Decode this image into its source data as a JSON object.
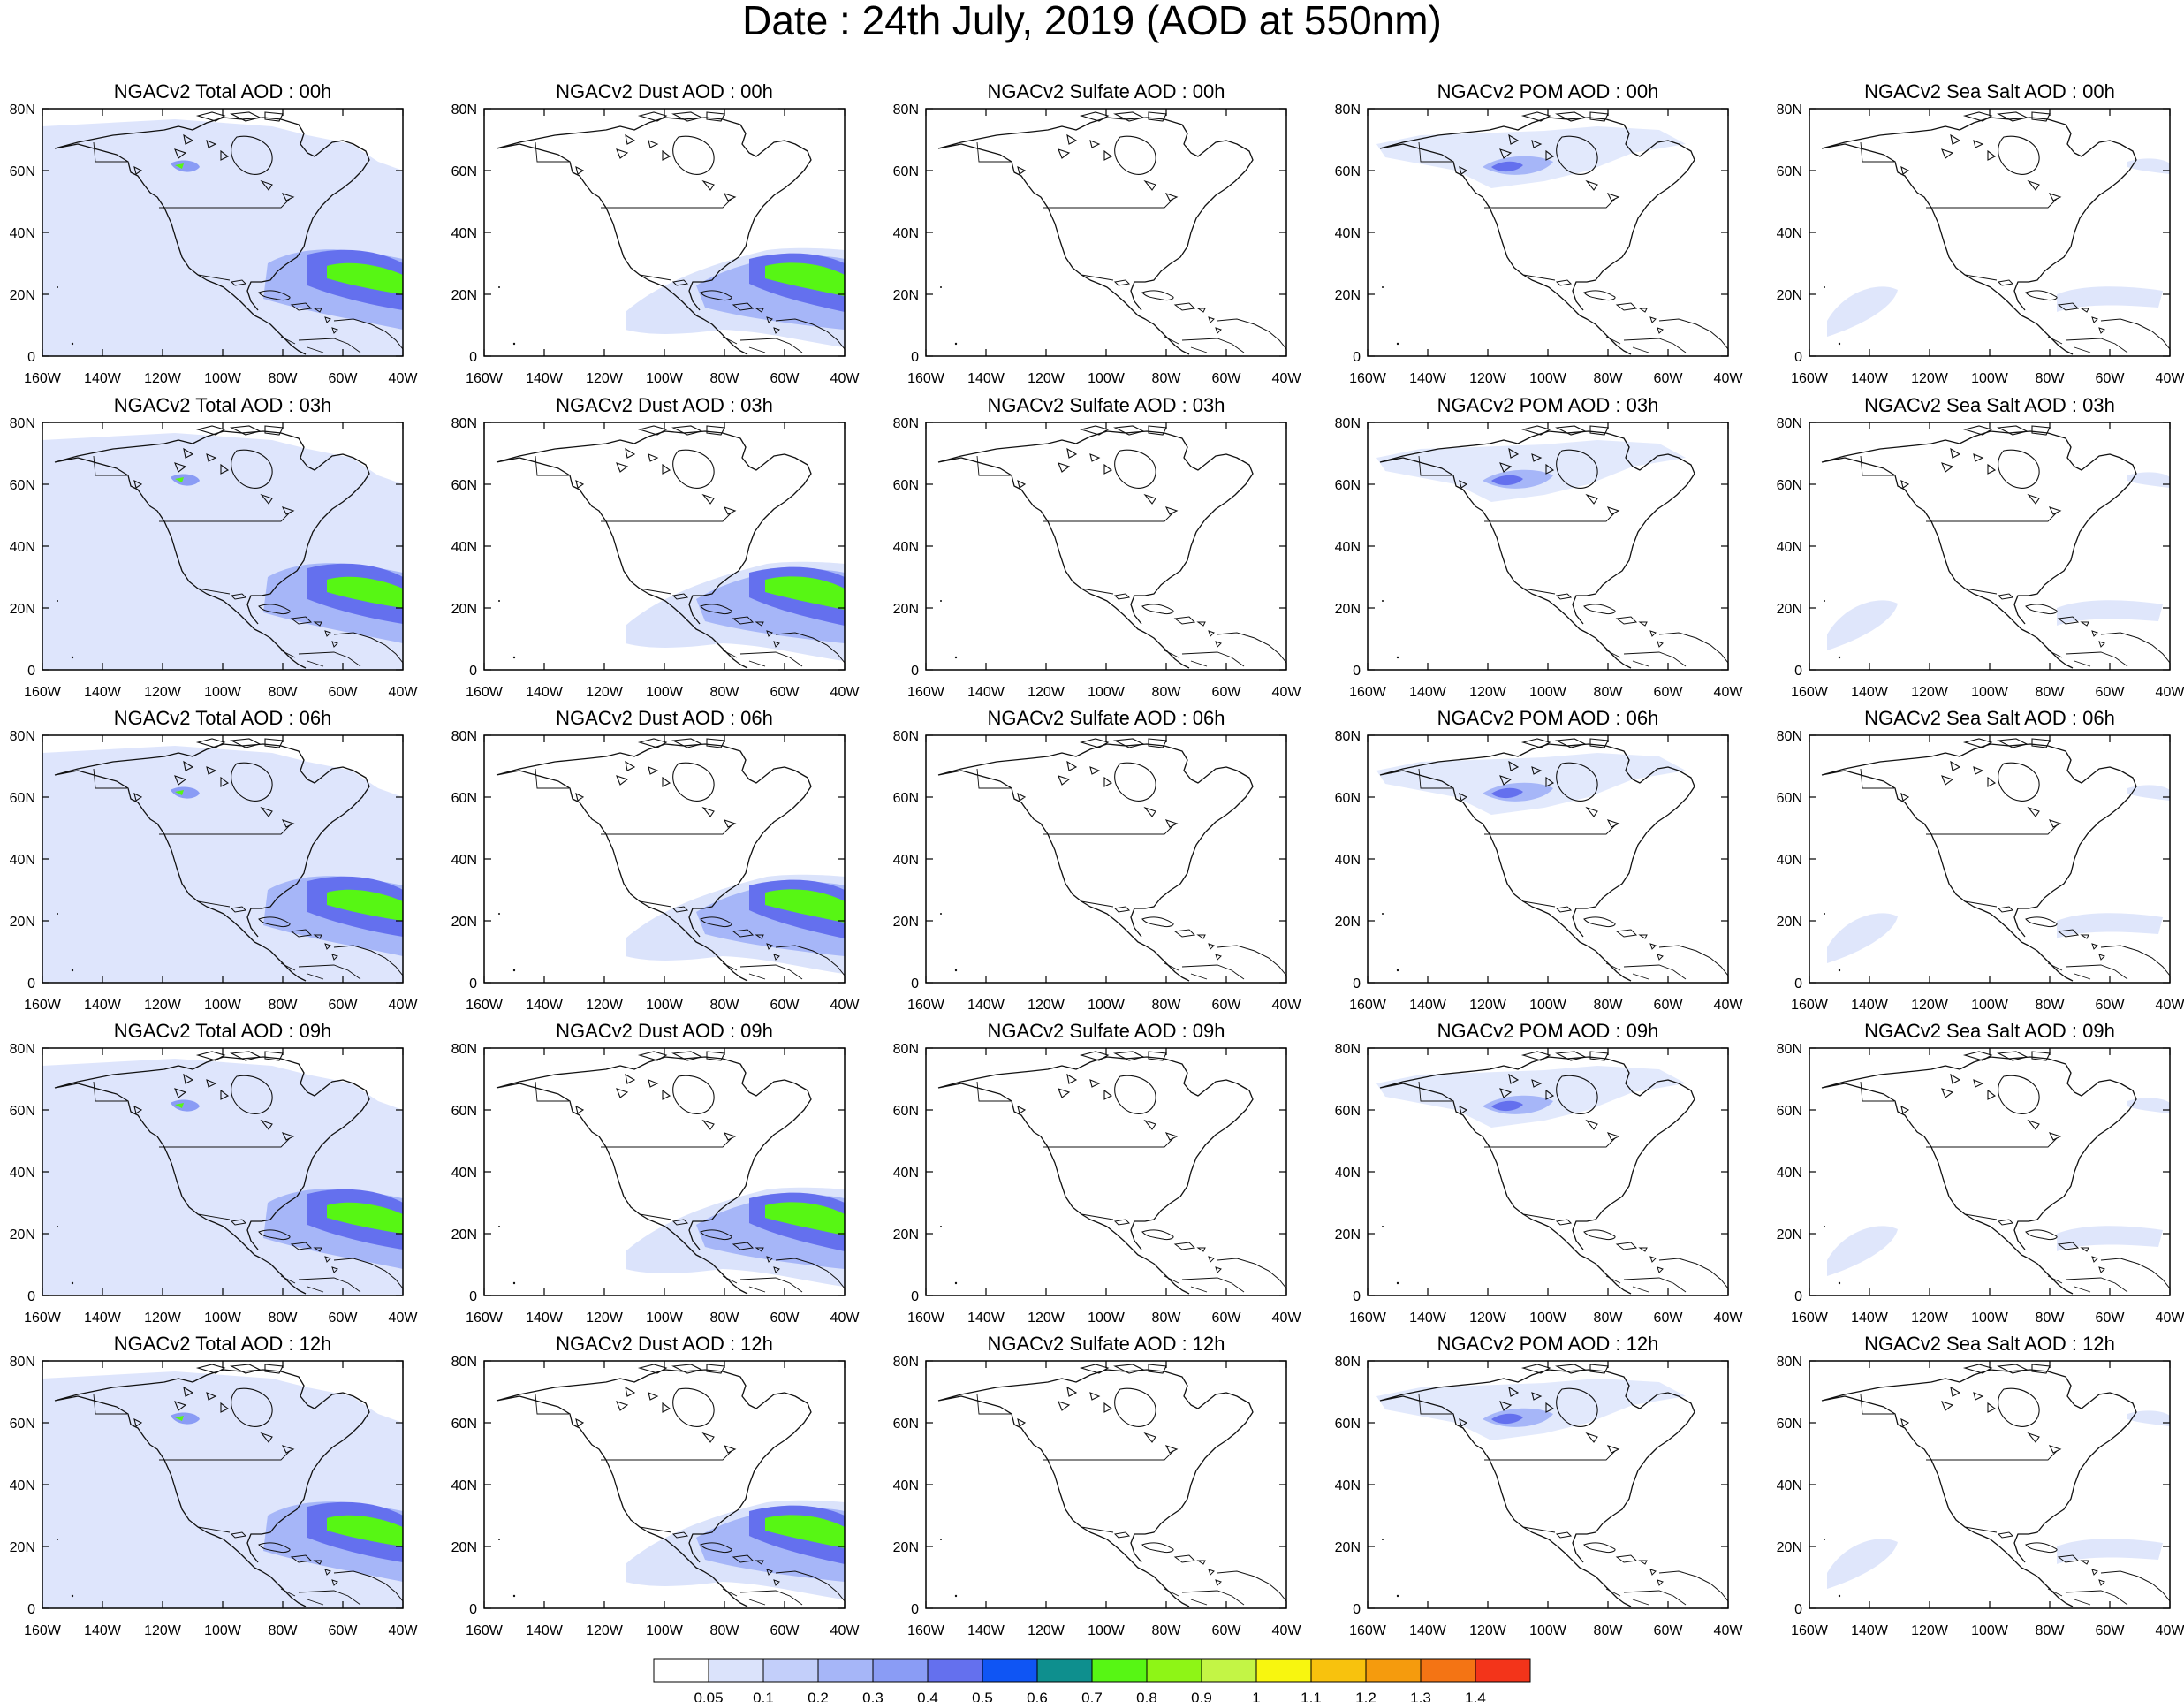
{
  "title": "Date : 24th July, 2019 (AOD at 550nm)",
  "panels": [
    {
      "title": "NGACv2 Total AOD : 00h",
      "species": "total",
      "time": "00h"
    },
    {
      "title": "NGACv2 Dust AOD : 00h",
      "species": "dust",
      "time": "00h"
    },
    {
      "title": "NGACv2 Sulfate AOD : 00h",
      "species": "sulfate",
      "time": "00h"
    },
    {
      "title": "NGACv2 POM AOD : 00h",
      "species": "pom",
      "time": "00h"
    },
    {
      "title": "NGACv2 Sea Salt AOD : 00h",
      "species": "seasalt",
      "time": "00h"
    },
    {
      "title": "NGACv2 Total AOD : 03h",
      "species": "total",
      "time": "03h"
    },
    {
      "title": "NGACv2 Dust AOD : 03h",
      "species": "dust",
      "time": "03h"
    },
    {
      "title": "NGACv2 Sulfate AOD : 03h",
      "species": "sulfate",
      "time": "03h"
    },
    {
      "title": "NGACv2 POM AOD : 03h",
      "species": "pom",
      "time": "03h"
    },
    {
      "title": "NGACv2 Sea Salt AOD : 03h",
      "species": "seasalt",
      "time": "03h"
    },
    {
      "title": "NGACv2 Total AOD : 06h",
      "species": "total",
      "time": "06h"
    },
    {
      "title": "NGACv2 Dust AOD : 06h",
      "species": "dust",
      "time": "06h"
    },
    {
      "title": "NGACv2 Sulfate AOD : 06h",
      "species": "sulfate",
      "time": "06h"
    },
    {
      "title": "NGACv2 POM AOD : 06h",
      "species": "pom",
      "time": "06h"
    },
    {
      "title": "NGACv2 Sea Salt AOD : 06h",
      "species": "seasalt",
      "time": "06h"
    },
    {
      "title": "NGACv2 Total AOD : 09h",
      "species": "total",
      "time": "09h"
    },
    {
      "title": "NGACv2 Dust AOD : 09h",
      "species": "dust",
      "time": "09h"
    },
    {
      "title": "NGACv2 Sulfate AOD : 09h",
      "species": "sulfate",
      "time": "09h"
    },
    {
      "title": "NGACv2 POM AOD : 09h",
      "species": "pom",
      "time": "09h"
    },
    {
      "title": "NGACv2 Sea Salt  AOD : 09h",
      "species": "seasalt",
      "time": "09h"
    },
    {
      "title": "NGACv2 Total AOD  : 12h",
      "species": "total",
      "time": "12h"
    },
    {
      "title": "NGACv2 Dust AOD : 12h",
      "species": "dust",
      "time": "12h"
    },
    {
      "title": "NGACv2 Sulfate AOD : 12h",
      "species": "sulfate",
      "time": "12h"
    },
    {
      "title": "NGACv2 POM  AOD : 12h",
      "species": "pom",
      "time": "12h"
    },
    {
      "title": "NGACv2 Sea Salt  AOD : 12h",
      "species": "seasalt",
      "time": "12h"
    }
  ],
  "axes": {
    "lon_ticks": [
      "160W",
      "140W",
      "120W",
      "100W",
      "80W",
      "60W",
      "40W"
    ],
    "lat_ticks": [
      "0",
      "20N",
      "40N",
      "60N",
      "80N"
    ],
    "lon_range": [
      -160,
      -40
    ],
    "lat_range": [
      0,
      80
    ]
  },
  "colorbar": {
    "colors": [
      "#ffffff",
      "#dbe3fb",
      "#c3cffa",
      "#a6b6f8",
      "#8a9cf5",
      "#6470ee",
      "#0f55f4",
      "#0e8f8e",
      "#57f614",
      "#8ef516",
      "#c3f545",
      "#f8f60f",
      "#f8c20d",
      "#f59b0d",
      "#f47414",
      "#f3341a"
    ],
    "labels": [
      "0.05",
      "0.1",
      "0.2",
      "0.3",
      "0.4",
      "0.5",
      "0.6",
      "0.7",
      "0.8",
      "0.9",
      "1",
      "1.1",
      "1.2",
      "1.3",
      "1.4"
    ]
  }
}
